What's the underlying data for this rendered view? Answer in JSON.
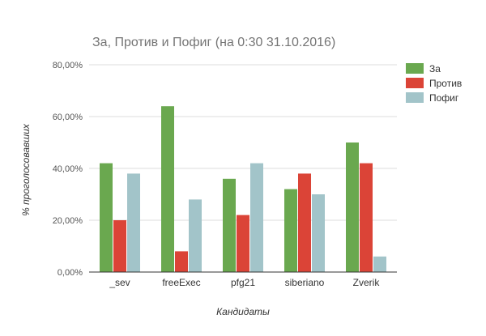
{
  "chart_data": {
    "type": "bar",
    "title": "За, Против и Пофиг (на 0:30 31.10.2016)",
    "xlabel": "Кандидаты",
    "ylabel": "% проголосовавших",
    "categories": [
      "_sev",
      "freeExec",
      "pfg21",
      "siberiano",
      "Zverik"
    ],
    "series": [
      {
        "name": "За",
        "color": "#6aa84f",
        "values": [
          42,
          64,
          36,
          32,
          50
        ]
      },
      {
        "name": "Против",
        "color": "#db4437",
        "values": [
          20,
          8,
          22,
          38,
          42
        ]
      },
      {
        "name": "Пофиг",
        "color": "#a2c4c9",
        "values": [
          38,
          28,
          42,
          30,
          6
        ]
      }
    ],
    "ylim": [
      0,
      80
    ],
    "yticks": [
      0,
      20,
      40,
      60,
      80
    ],
    "ytick_labels": [
      "0,00%",
      "20,00%",
      "40,00%",
      "60,00%",
      "80,00%"
    ],
    "grid": true,
    "legend": "right"
  }
}
